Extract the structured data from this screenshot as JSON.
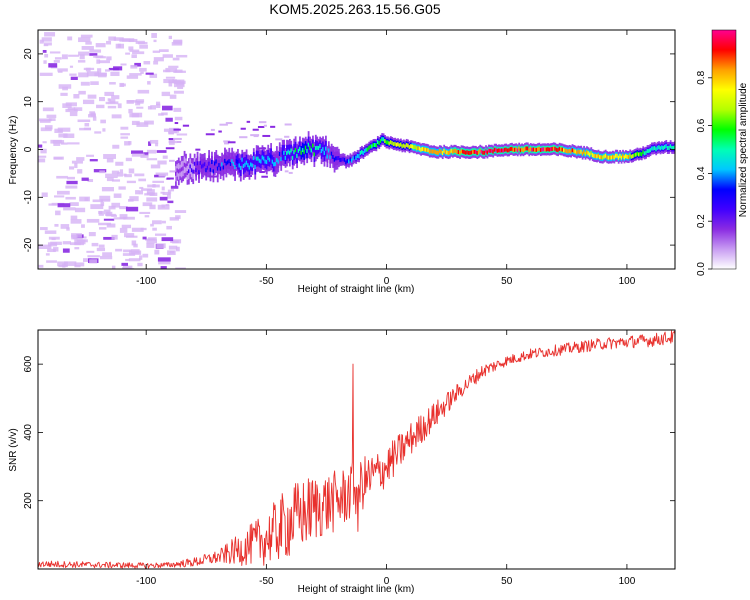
{
  "title": "KOM5.2025.263.15.56.G05",
  "colors": {
    "snr_line": "#e8302c",
    "spec_purple_light": "#d6b3f5",
    "axis": "#000000"
  },
  "chart_data": [
    {
      "type": "heatmap",
      "name": "spectrogram",
      "xlabel": "Height of straight line (km)",
      "ylabel": "Frequency (Hz)",
      "xlim": [
        -145,
        120
      ],
      "ylim": [
        -25,
        25
      ],
      "xticks": [
        -100,
        -50,
        0,
        50,
        100
      ],
      "yticks": [
        -20,
        -10,
        0,
        10,
        20
      ],
      "colorbar": {
        "label": "Normalized spectral amplitude",
        "range": [
          0,
          1
        ],
        "ticks": [
          "0.0",
          "0.2",
          "0.4",
          "0.6",
          "0.8"
        ],
        "tick_values": [
          0.0,
          0.2,
          0.4,
          0.6,
          0.8
        ],
        "colormap": [
          "#ffffff",
          "#c89cf2",
          "#8a2be2",
          "#4000ff",
          "#0000ff",
          "#00c8ff",
          "#00ffb4",
          "#00ff00",
          "#b4ff00",
          "#ffff00",
          "#ffa000",
          "#ff0000",
          "#ff0090"
        ]
      },
      "ridge_track": {
        "x": [
          -88,
          -80,
          -70,
          -60,
          -50,
          -45,
          -40,
          -35,
          -30,
          -25,
          -20,
          -17,
          -14,
          -10,
          -5,
          -2,
          0,
          5,
          10,
          15,
          20,
          30,
          40,
          50,
          60,
          70,
          80,
          85,
          90,
          95,
          100,
          105,
          110,
          115,
          120
        ],
        "frequency": [
          -4,
          -4,
          -3.5,
          -3,
          -2.5,
          -2,
          -1,
          0,
          0,
          -0.5,
          -2,
          -2.5,
          -2,
          -0.5,
          1,
          2,
          1.5,
          1,
          0.5,
          0,
          -0.5,
          -0.5,
          -0.5,
          0,
          0,
          0,
          -0.5,
          -1,
          -1.5,
          -1.5,
          -1.5,
          -1,
          0,
          0.5,
          0.5
        ],
        "amplitude": [
          0.15,
          0.25,
          0.35,
          0.45,
          0.45,
          0.4,
          0.5,
          0.6,
          0.55,
          0.4,
          0.3,
          0.35,
          0.4,
          0.5,
          0.6,
          0.6,
          0.65,
          0.7,
          0.75,
          0.8,
          0.85,
          0.95,
          0.95,
          0.95,
          0.95,
          0.95,
          0.85,
          0.75,
          0.8,
          0.85,
          0.8,
          0.6,
          0.5,
          0.5,
          0.5
        ]
      }
    },
    {
      "type": "line",
      "name": "snr",
      "xlabel": "Height of straight line (km)",
      "ylabel": "SNR (v/v)",
      "xlim": [
        -145,
        120
      ],
      "ylim": [
        0,
        700
      ],
      "xticks": [
        -100,
        -50,
        0,
        50,
        100
      ],
      "yticks": [
        200,
        400,
        600
      ],
      "trend": {
        "x": [
          -145,
          -120,
          -100,
          -90,
          -80,
          -70,
          -60,
          -50,
          -40,
          -30,
          -20,
          -10,
          0,
          10,
          20,
          30,
          40,
          50,
          60,
          70,
          80,
          90,
          100,
          110,
          120
        ],
        "y": [
          15,
          12,
          10,
          12,
          20,
          35,
          60,
          90,
          140,
          180,
          200,
          250,
          300,
          380,
          450,
          520,
          580,
          610,
          630,
          640,
          650,
          660,
          665,
          670,
          680
        ]
      },
      "noise_amplitude": {
        "x": [
          -145,
          -90,
          -70,
          -60,
          -50,
          -40,
          -30,
          -20,
          -10,
          0,
          10,
          20,
          30,
          50,
          120
        ],
        "y": [
          10,
          8,
          20,
          50,
          80,
          110,
          100,
          90,
          80,
          60,
          50,
          40,
          25,
          15,
          20
        ]
      },
      "spike": {
        "x": -14,
        "y": 600
      },
      "dip": {
        "x": -12,
        "y": 110
      }
    }
  ]
}
